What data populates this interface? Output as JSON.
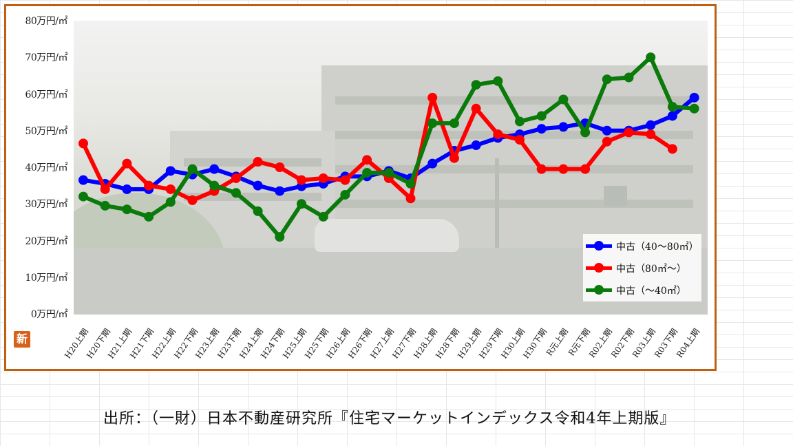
{
  "chart_data": {
    "type": "line",
    "title": "",
    "xlabel": "",
    "ylabel": "",
    "ylim": [
      0,
      80
    ],
    "yticks": [
      "0万円/㎡",
      "10万円/㎡",
      "20万円/㎡",
      "30万円/㎡",
      "40万円/㎡",
      "50万円/㎡",
      "60万円/㎡",
      "70万円/㎡",
      "80万円/㎡"
    ],
    "categories": [
      "H20上期",
      "H20下期",
      "H21上期",
      "H21下期",
      "H22上期",
      "H22下期",
      "H23上期",
      "H23下期",
      "H24上期",
      "H24下期",
      "H25上期",
      "H25下期",
      "H26上期",
      "H26下期",
      "H27上期",
      "H27下期",
      "H28上期",
      "H28下期",
      "H29上期",
      "H29下期",
      "H30上期",
      "H30下期",
      "R元上期",
      "R元下期",
      "R02上期",
      "R02下期",
      "R03上期",
      "R03下期",
      "R04上期"
    ],
    "series": [
      {
        "name": "中古（40～80㎡）",
        "color": "#0000ff",
        "values": [
          36.5,
          35.5,
          34,
          34,
          39,
          38,
          39.5,
          37.5,
          35,
          33.5,
          34.8,
          35.5,
          37.5,
          37.5,
          39,
          37,
          41,
          44.5,
          46,
          48,
          49,
          50.5,
          51,
          52,
          50,
          50,
          51.5,
          54,
          59
        ]
      },
      {
        "name": "中古（80㎡～）",
        "color": "#ff0000",
        "values": [
          46.5,
          34,
          41,
          35,
          34,
          31,
          33.5,
          37,
          41.5,
          40,
          36.5,
          37,
          36.5,
          42,
          37,
          31.5,
          59,
          42.5,
          56,
          49,
          47.5,
          39.5,
          39.5,
          39.5,
          47,
          49.5,
          49,
          45,
          null
        ]
      },
      {
        "name": "中古（～40㎡）",
        "color": "#0a7a0a",
        "values": [
          32,
          29.5,
          28.5,
          26.5,
          30.5,
          39.5,
          35,
          33,
          28,
          21,
          30,
          26.5,
          32.5,
          38.5,
          38.5,
          35.5,
          52,
          52,
          62.5,
          63.5,
          52.5,
          54,
          58.5,
          49.5,
          64,
          64.5,
          70,
          56.5,
          56
        ]
      }
    ],
    "legend_position": "bottom-right",
    "background": "faded apartment photo"
  },
  "badge": "新",
  "source": "出所：（一財）日本不動産研究所『住宅マーケットインデックス令和4年上期版』"
}
